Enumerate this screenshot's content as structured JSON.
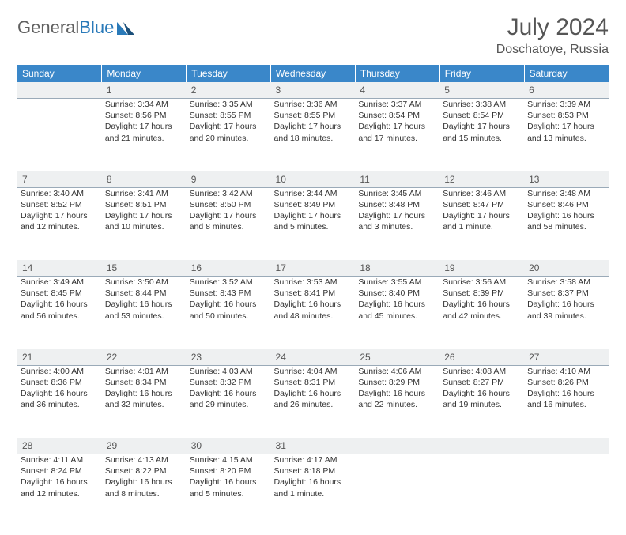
{
  "brand": {
    "part1": "General",
    "part2": "Blue"
  },
  "title": {
    "month": "July 2024",
    "location": "Doschatoye, Russia"
  },
  "colors": {
    "header_bg": "#3a87c9",
    "header_text": "#ffffff",
    "daynum_bg": "#eef0f1",
    "daynum_border": "#9aaab8",
    "body_text": "#333333",
    "title_text": "#555555",
    "logo_gray": "#606060",
    "logo_blue": "#2a7ab9"
  },
  "weekdays": [
    "Sunday",
    "Monday",
    "Tuesday",
    "Wednesday",
    "Thursday",
    "Friday",
    "Saturday"
  ],
  "weeks": [
    [
      null,
      {
        "n": "1",
        "sr": "3:34 AM",
        "ss": "8:56 PM",
        "dl": "17 hours and 21 minutes."
      },
      {
        "n": "2",
        "sr": "3:35 AM",
        "ss": "8:55 PM",
        "dl": "17 hours and 20 minutes."
      },
      {
        "n": "3",
        "sr": "3:36 AM",
        "ss": "8:55 PM",
        "dl": "17 hours and 18 minutes."
      },
      {
        "n": "4",
        "sr": "3:37 AM",
        "ss": "8:54 PM",
        "dl": "17 hours and 17 minutes."
      },
      {
        "n": "5",
        "sr": "3:38 AM",
        "ss": "8:54 PM",
        "dl": "17 hours and 15 minutes."
      },
      {
        "n": "6",
        "sr": "3:39 AM",
        "ss": "8:53 PM",
        "dl": "17 hours and 13 minutes."
      }
    ],
    [
      {
        "n": "7",
        "sr": "3:40 AM",
        "ss": "8:52 PM",
        "dl": "17 hours and 12 minutes."
      },
      {
        "n": "8",
        "sr": "3:41 AM",
        "ss": "8:51 PM",
        "dl": "17 hours and 10 minutes."
      },
      {
        "n": "9",
        "sr": "3:42 AM",
        "ss": "8:50 PM",
        "dl": "17 hours and 8 minutes."
      },
      {
        "n": "10",
        "sr": "3:44 AM",
        "ss": "8:49 PM",
        "dl": "17 hours and 5 minutes."
      },
      {
        "n": "11",
        "sr": "3:45 AM",
        "ss": "8:48 PM",
        "dl": "17 hours and 3 minutes."
      },
      {
        "n": "12",
        "sr": "3:46 AM",
        "ss": "8:47 PM",
        "dl": "17 hours and 1 minute."
      },
      {
        "n": "13",
        "sr": "3:48 AM",
        "ss": "8:46 PM",
        "dl": "16 hours and 58 minutes."
      }
    ],
    [
      {
        "n": "14",
        "sr": "3:49 AM",
        "ss": "8:45 PM",
        "dl": "16 hours and 56 minutes."
      },
      {
        "n": "15",
        "sr": "3:50 AM",
        "ss": "8:44 PM",
        "dl": "16 hours and 53 minutes."
      },
      {
        "n": "16",
        "sr": "3:52 AM",
        "ss": "8:43 PM",
        "dl": "16 hours and 50 minutes."
      },
      {
        "n": "17",
        "sr": "3:53 AM",
        "ss": "8:41 PM",
        "dl": "16 hours and 48 minutes."
      },
      {
        "n": "18",
        "sr": "3:55 AM",
        "ss": "8:40 PM",
        "dl": "16 hours and 45 minutes."
      },
      {
        "n": "19",
        "sr": "3:56 AM",
        "ss": "8:39 PM",
        "dl": "16 hours and 42 minutes."
      },
      {
        "n": "20",
        "sr": "3:58 AM",
        "ss": "8:37 PM",
        "dl": "16 hours and 39 minutes."
      }
    ],
    [
      {
        "n": "21",
        "sr": "4:00 AM",
        "ss": "8:36 PM",
        "dl": "16 hours and 36 minutes."
      },
      {
        "n": "22",
        "sr": "4:01 AM",
        "ss": "8:34 PM",
        "dl": "16 hours and 32 minutes."
      },
      {
        "n": "23",
        "sr": "4:03 AM",
        "ss": "8:32 PM",
        "dl": "16 hours and 29 minutes."
      },
      {
        "n": "24",
        "sr": "4:04 AM",
        "ss": "8:31 PM",
        "dl": "16 hours and 26 minutes."
      },
      {
        "n": "25",
        "sr": "4:06 AM",
        "ss": "8:29 PM",
        "dl": "16 hours and 22 minutes."
      },
      {
        "n": "26",
        "sr": "4:08 AM",
        "ss": "8:27 PM",
        "dl": "16 hours and 19 minutes."
      },
      {
        "n": "27",
        "sr": "4:10 AM",
        "ss": "8:26 PM",
        "dl": "16 hours and 16 minutes."
      }
    ],
    [
      {
        "n": "28",
        "sr": "4:11 AM",
        "ss": "8:24 PM",
        "dl": "16 hours and 12 minutes."
      },
      {
        "n": "29",
        "sr": "4:13 AM",
        "ss": "8:22 PM",
        "dl": "16 hours and 8 minutes."
      },
      {
        "n": "30",
        "sr": "4:15 AM",
        "ss": "8:20 PM",
        "dl": "16 hours and 5 minutes."
      },
      {
        "n": "31",
        "sr": "4:17 AM",
        "ss": "8:18 PM",
        "dl": "16 hours and 1 minute."
      },
      null,
      null,
      null
    ]
  ],
  "labels": {
    "sunrise": "Sunrise:",
    "sunset": "Sunset:",
    "daylight": "Daylight:"
  }
}
